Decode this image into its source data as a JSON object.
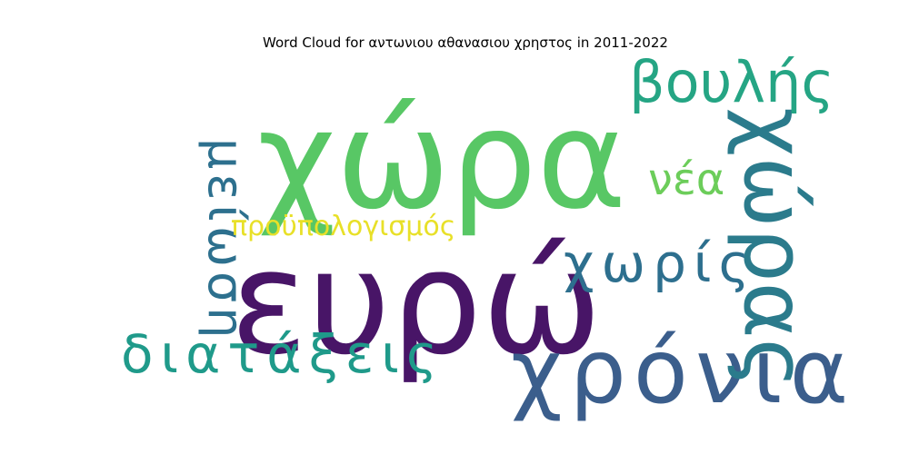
{
  "chart_data": {
    "type": "wordcloud",
    "title": "Word Cloud for αντωνιου αθανασιου χρηστος in 2011-2022",
    "words": [
      {
        "text": "ευρώ",
        "color": "#481567"
      },
      {
        "text": "χώρα",
        "color": "#58c765"
      },
      {
        "text": "χρόνια",
        "color": "#3b5e8c"
      },
      {
        "text": "χώρας",
        "color": "#2b7b8c"
      },
      {
        "text": "βουλής",
        "color": "#25a584"
      },
      {
        "text": "διατάξεις",
        "color": "#1f9a8a"
      },
      {
        "text": "μείωση",
        "color": "#2d708e"
      },
      {
        "text": "χωρίς",
        "color": "#2d6f8e"
      },
      {
        "text": "νέα",
        "color": "#6ccd5a"
      },
      {
        "text": "προϋπολογισμός",
        "color": "#e8e028"
      }
    ]
  }
}
